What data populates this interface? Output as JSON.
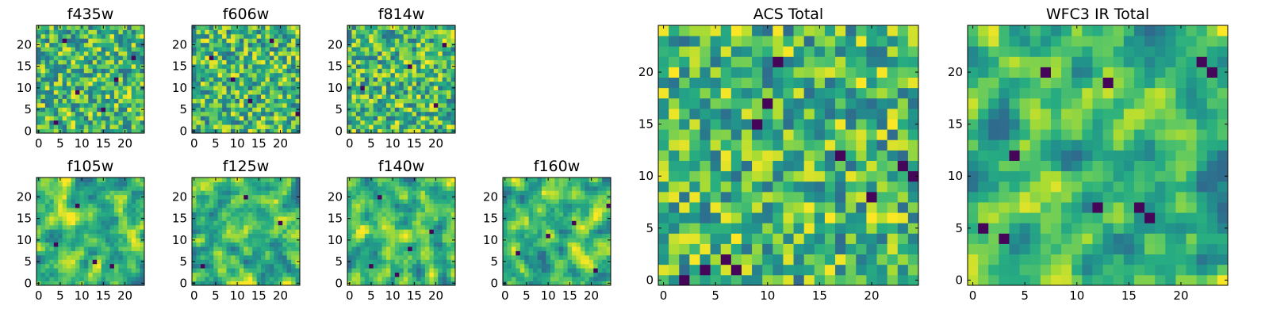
{
  "chart_data": {
    "type": "heatmap",
    "colormap": "viridis",
    "grid": false,
    "panels": [
      {
        "title": "f435w",
        "grid_size": 25,
        "xticks": [
          0,
          5,
          10,
          15,
          20
        ],
        "yticks": [
          0,
          5,
          10,
          15,
          20
        ],
        "xlim": [
          -0.5,
          24.5
        ],
        "ylim": [
          -0.5,
          24.5
        ],
        "seed": 11,
        "smooth": 0,
        "dark_cells": [
          [
            4,
            2
          ],
          [
            18,
            12
          ],
          [
            22,
            17
          ],
          [
            6,
            21
          ],
          [
            15,
            5
          ],
          [
            9,
            9
          ]
        ]
      },
      {
        "title": "f606w",
        "grid_size": 25,
        "xticks": [
          0,
          5,
          10,
          15,
          20
        ],
        "yticks": [
          0,
          5,
          10,
          15,
          20
        ],
        "xlim": [
          -0.5,
          24.5
        ],
        "ylim": [
          -0.5,
          24.5
        ],
        "seed": 23,
        "smooth": 0,
        "dark_cells": [
          [
            9,
            12
          ],
          [
            18,
            21
          ],
          [
            13,
            7
          ],
          [
            24,
            4
          ],
          [
            4,
            17
          ]
        ]
      },
      {
        "title": "f814w",
        "grid_size": 25,
        "xticks": [
          0,
          5,
          10,
          15,
          20
        ],
        "yticks": [
          0,
          5,
          10,
          15,
          20
        ],
        "xlim": [
          -0.5,
          24.5
        ],
        "ylim": [
          -0.5,
          24.5
        ],
        "seed": 37,
        "smooth": 0,
        "dark_cells": [
          [
            14,
            15
          ],
          [
            20,
            6
          ],
          [
            3,
            10
          ],
          [
            22,
            20
          ]
        ]
      },
      {
        "title": "f105w",
        "grid_size": 25,
        "xticks": [
          0,
          5,
          10,
          15,
          20
        ],
        "yticks": [
          0,
          5,
          10,
          15,
          20
        ],
        "xlim": [
          -0.5,
          24.5
        ],
        "ylim": [
          -0.5,
          24.5
        ],
        "seed": 41,
        "smooth": 1,
        "dark_cells": [
          [
            9,
            18
          ],
          [
            13,
            5
          ],
          [
            17,
            4
          ],
          [
            4,
            9
          ]
        ]
      },
      {
        "title": "f125w",
        "grid_size": 25,
        "xticks": [
          0,
          5,
          10,
          15,
          20
        ],
        "yticks": [
          0,
          5,
          10,
          15,
          20
        ],
        "xlim": [
          -0.5,
          24.5
        ],
        "ylim": [
          -0.5,
          24.5
        ],
        "seed": 53,
        "smooth": 1,
        "dark_cells": [
          [
            2,
            4
          ],
          [
            20,
            14
          ],
          [
            12,
            20
          ]
        ]
      },
      {
        "title": "f140w",
        "grid_size": 25,
        "xticks": [
          0,
          5,
          10,
          15,
          20
        ],
        "yticks": [
          0,
          5,
          10,
          15,
          20
        ],
        "xlim": [
          -0.5,
          24.5
        ],
        "ylim": [
          -0.5,
          24.5
        ],
        "seed": 67,
        "smooth": 1,
        "dark_cells": [
          [
            5,
            4
          ],
          [
            11,
            2
          ],
          [
            19,
            12
          ],
          [
            7,
            20
          ],
          [
            14,
            8
          ]
        ]
      },
      {
        "title": "f160w",
        "grid_size": 25,
        "xticks": [
          0,
          5,
          10,
          15,
          20
        ],
        "yticks": [
          0,
          5,
          10,
          15,
          20
        ],
        "xlim": [
          -0.5,
          24.5
        ],
        "ylim": [
          -0.5,
          24.5
        ],
        "seed": 79,
        "smooth": 1,
        "dark_cells": [
          [
            3,
            7
          ],
          [
            10,
            11
          ],
          [
            21,
            3
          ],
          [
            24,
            18
          ],
          [
            16,
            14
          ]
        ]
      },
      {
        "title": "ACS Total",
        "grid_size": 25,
        "xticks": [
          0,
          5,
          10,
          15,
          20
        ],
        "yticks": [
          0,
          5,
          10,
          15,
          20
        ],
        "xlim": [
          -0.5,
          24.5
        ],
        "ylim": [
          -0.5,
          24.5
        ],
        "seed": 97,
        "smooth": 0,
        "dark_cells": [
          [
            11,
            21
          ],
          [
            10,
            17
          ],
          [
            9,
            15
          ],
          [
            17,
            12
          ],
          [
            23,
            11
          ],
          [
            24,
            10
          ],
          [
            6,
            2
          ],
          [
            7,
            1
          ],
          [
            2,
            0
          ],
          [
            4,
            1
          ],
          [
            20,
            8
          ]
        ]
      },
      {
        "title": "WFC3 IR Total",
        "grid_size": 25,
        "xticks": [
          0,
          5,
          10,
          15,
          20
        ],
        "yticks": [
          0,
          5,
          10,
          15,
          20
        ],
        "xlim": [
          -0.5,
          24.5
        ],
        "ylim": [
          -0.5,
          24.5
        ],
        "seed": 113,
        "smooth": 1,
        "dark_cells": [
          [
            7,
            20
          ],
          [
            13,
            19
          ],
          [
            23,
            20
          ],
          [
            4,
            12
          ],
          [
            12,
            7
          ],
          [
            16,
            7
          ],
          [
            17,
            6
          ],
          [
            1,
            5
          ],
          [
            3,
            4
          ],
          [
            22,
            21
          ]
        ]
      }
    ]
  }
}
